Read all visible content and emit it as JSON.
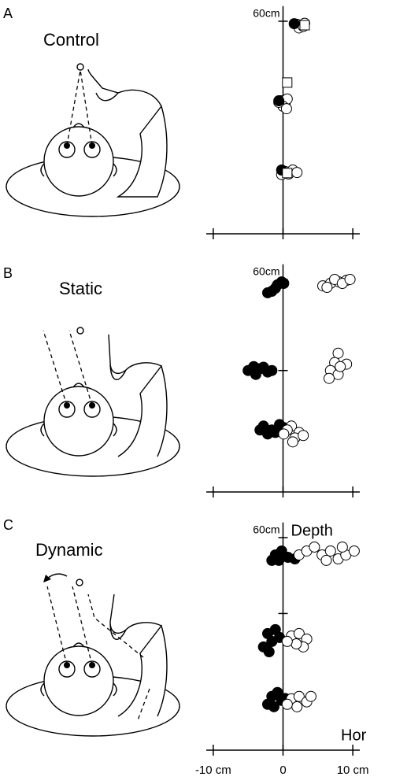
{
  "chart_data": [
    {
      "type": "scatter",
      "label": "A",
      "title": "Control",
      "xlim": [
        -11,
        11
      ],
      "ylim": [
        -10,
        65
      ],
      "xticks": [
        {
          "value": -10,
          "label": null
        },
        {
          "value": 0,
          "label": null
        },
        {
          "value": 10,
          "label": null
        }
      ],
      "yticks": [
        {
          "value": 60,
          "label": "60cm"
        }
      ],
      "series": [
        {
          "color": "#ffffff",
          "marker": "circle",
          "x": [
            2.0,
            2.5,
            3.1,
            2.3,
            2.9,
            -0.3,
            0.3,
            0.6,
            0.0,
            0.5,
            -0.6,
            0.3,
            0.8,
            1.4,
            -0.2,
            2.0
          ],
          "values": [
            59.0,
            58.4,
            59.3,
            57.8,
            58.3,
            33.8,
            33.1,
            34.4,
            32.0,
            31.2,
            33.3,
            10.5,
            9.7,
            11.0,
            9.5,
            10.2
          ]
        },
        {
          "color": "#000000",
          "marker": "circle",
          "x": [
            1.6,
            -0.6,
            -0.2
          ],
          "values": [
            59.2,
            33.8,
            11.0
          ]
        },
        {
          "color": "#ffffff",
          "marker": "square",
          "x": [
            3.1,
            0.6,
            0.6
          ],
          "values": [
            58.7,
            39.8,
            10.0
          ]
        }
      ]
    },
    {
      "type": "scatter",
      "label": "B",
      "title": "Static",
      "xlim": [
        -11,
        11
      ],
      "ylim": [
        -10,
        65
      ],
      "xticks": [
        {
          "value": -10,
          "label": null
        },
        {
          "value": 0,
          "label": null
        },
        {
          "value": 10,
          "label": null
        }
      ],
      "yticks": [
        {
          "value": 30,
          "label": null
        },
        {
          "value": 60,
          "label": "60cm"
        }
      ],
      "series": [
        {
          "color": "#000000",
          "marker": "circle",
          "x": [
            -0.8,
            -1.6,
            -0.2,
            -1.1,
            -2.2,
            0.1,
            -5.0,
            -4.2,
            -3.3,
            -2.2,
            -3.9,
            -2.8,
            -1.6,
            -2.8,
            -1.6,
            -0.5,
            -2.2,
            -1.1,
            0.1,
            -3.3
          ],
          "values": [
            58.2,
            56.1,
            59.2,
            57.1,
            55.6,
            58.7,
            30.0,
            31.3,
            30.6,
            29.5,
            28.7,
            31.1,
            30.0,
            11.7,
            10.4,
            12.2,
            9.1,
            9.6,
            11.2,
            10.4
          ]
        },
        {
          "color": "#ffffff",
          "marker": "circle",
          "x": [
            5.7,
            6.8,
            8.0,
            9.1,
            7.4,
            8.5,
            9.6,
            6.3,
            7.9,
            7.4,
            6.8,
            7.9,
            6.6,
            9.1,
            8.2,
            1.2,
            2.3,
            1.7,
            0.6,
            2.9,
            1.4,
            0.1
          ],
          "values": [
            57.9,
            58.7,
            59.2,
            59.7,
            60.0,
            58.7,
            60.0,
            57.4,
            35.7,
            32.6,
            30.0,
            28.7,
            27.4,
            32.1,
            31.3,
            11.7,
            9.6,
            7.8,
            10.4,
            8.6,
            6.5,
            9.1
          ]
        }
      ]
    },
    {
      "type": "scatter",
      "label": "C",
      "title": "Dynamic",
      "ylabel": "Depth",
      "xlabel": "Hor",
      "xlim": [
        -11,
        11
      ],
      "ylim": [
        -10,
        65
      ],
      "xticks": [
        {
          "value": -10,
          "label": "-10 cm"
        },
        0,
        {
          "value": 10,
          "label": "10 cm"
        }
      ],
      "yticks": [
        {
          "value": 35,
          "label": null
        },
        {
          "value": 60,
          "label": "60cm"
        }
      ],
      "series": [
        {
          "color": "#000000",
          "marker": "circle",
          "x": [
            -1.1,
            -0.2,
            0.7,
            1.7,
            -1.6,
            -0.6,
            -2.2,
            -1.6,
            -1.1,
            -2.8,
            -0.5,
            -2.0,
            -1.6,
            -0.8,
            -0.2,
            -2.2,
            0.3,
            -1.3
          ],
          "values": [
            54.3,
            55.6,
            53.5,
            53.0,
            52.5,
            52.5,
            28.4,
            25.8,
            29.7,
            24.0,
            27.1,
            22.4,
            7.7,
            9.0,
            6.4,
            5.1,
            7.0,
            4.3
          ]
        },
        {
          "color": "#ffffff",
          "marker": "circle",
          "x": [
            2.3,
            3.4,
            4.5,
            5.6,
            6.8,
            7.9,
            9.0,
            10.2,
            6.2,
            8.5,
            1.2,
            2.3,
            3.4,
            2.9,
            1.9,
            0.6,
            1.2,
            2.3,
            3.4,
            2.0,
            0.6,
            4.0
          ],
          "values": [
            54.3,
            55.6,
            56.9,
            54.3,
            55.6,
            53.0,
            54.3,
            55.6,
            52.5,
            56.9,
            27.6,
            28.4,
            26.6,
            24.0,
            25.0,
            25.8,
            6.9,
            7.7,
            5.9,
            4.3,
            5.1,
            7.7
          ]
        }
      ]
    }
  ]
}
